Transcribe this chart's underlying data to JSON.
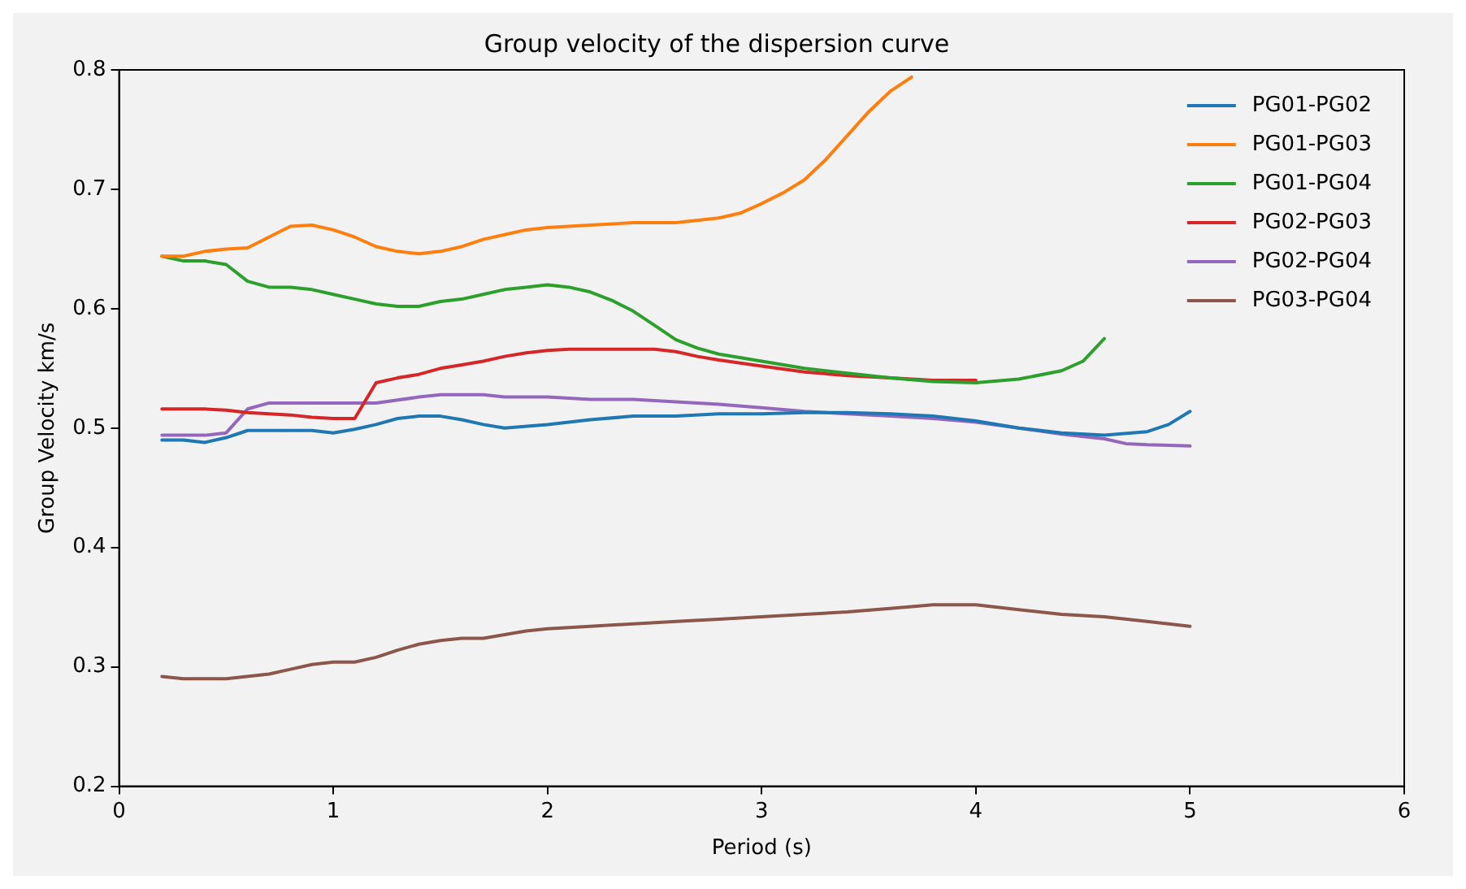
{
  "chart_data": {
    "type": "line",
    "title": "Group velocity of the dispersion curve",
    "xlabel": "Period (s)",
    "ylabel": "Group Velocity km/s",
    "xlim": [
      0,
      6
    ],
    "xticks": [
      0,
      1,
      2,
      3,
      4,
      5,
      6
    ],
    "ylim": [
      0.2,
      0.8
    ],
    "yticks": [
      0.2,
      0.3,
      0.4,
      0.5,
      0.6,
      0.7,
      0.8
    ],
    "grid": false,
    "legend": "top right",
    "marker": "none",
    "line_style": "solid",
    "series": [
      {
        "name": "PG01-PG02",
        "color": "#1f77b4",
        "x": [
          0.2,
          0.3,
          0.4,
          0.5,
          0.6,
          0.8,
          0.9,
          1.0,
          1.1,
          1.2,
          1.3,
          1.4,
          1.5,
          1.6,
          1.7,
          1.8,
          2.0,
          2.2,
          2.4,
          2.6,
          2.8,
          3.0,
          3.2,
          3.4,
          3.6,
          3.8,
          4.0,
          4.2,
          4.4,
          4.6,
          4.8,
          4.9,
          5.0
        ],
        "values": [
          0.49,
          0.49,
          0.488,
          0.492,
          0.498,
          0.498,
          0.498,
          0.496,
          0.499,
          0.503,
          0.508,
          0.51,
          0.51,
          0.507,
          0.503,
          0.5,
          0.503,
          0.507,
          0.51,
          0.51,
          0.512,
          0.512,
          0.513,
          0.513,
          0.512,
          0.51,
          0.506,
          0.5,
          0.496,
          0.494,
          0.497,
          0.503,
          0.514
        ]
      },
      {
        "name": "PG01-PG03",
        "color": "#ff7f0e",
        "x": [
          0.2,
          0.3,
          0.4,
          0.5,
          0.6,
          0.7,
          0.8,
          0.9,
          1.0,
          1.1,
          1.2,
          1.3,
          1.4,
          1.5,
          1.6,
          1.7,
          1.8,
          1.9,
          2.0,
          2.2,
          2.4,
          2.6,
          2.8,
          2.9,
          3.0,
          3.1,
          3.2,
          3.3,
          3.4,
          3.5,
          3.6,
          3.7
        ],
        "values": [
          0.644,
          0.644,
          0.648,
          0.65,
          0.651,
          0.66,
          0.669,
          0.67,
          0.666,
          0.66,
          0.652,
          0.648,
          0.646,
          0.648,
          0.652,
          0.658,
          0.662,
          0.666,
          0.668,
          0.67,
          0.672,
          0.672,
          0.676,
          0.68,
          0.688,
          0.697,
          0.708,
          0.725,
          0.745,
          0.765,
          0.782,
          0.794
        ]
      },
      {
        "name": "PG01-PG04",
        "color": "#2ca02c",
        "x": [
          0.2,
          0.3,
          0.4,
          0.5,
          0.6,
          0.7,
          0.8,
          0.9,
          1.0,
          1.1,
          1.2,
          1.3,
          1.4,
          1.5,
          1.6,
          1.7,
          1.8,
          1.9,
          2.0,
          2.1,
          2.2,
          2.3,
          2.4,
          2.5,
          2.6,
          2.7,
          2.8,
          3.0,
          3.2,
          3.4,
          3.6,
          3.8,
          4.0,
          4.2,
          4.4,
          4.5,
          4.6
        ],
        "values": [
          0.644,
          0.64,
          0.64,
          0.637,
          0.623,
          0.618,
          0.618,
          0.616,
          0.612,
          0.608,
          0.604,
          0.602,
          0.602,
          0.606,
          0.608,
          0.612,
          0.616,
          0.618,
          0.62,
          0.618,
          0.614,
          0.607,
          0.598,
          0.586,
          0.574,
          0.567,
          0.562,
          0.556,
          0.55,
          0.546,
          0.542,
          0.539,
          0.538,
          0.541,
          0.548,
          0.556,
          0.575
        ]
      },
      {
        "name": "PG02-PG03",
        "color": "#d62728",
        "x": [
          0.2,
          0.4,
          0.5,
          0.6,
          0.8,
          0.9,
          1.0,
          1.1,
          1.2,
          1.3,
          1.4,
          1.5,
          1.6,
          1.7,
          1.8,
          1.9,
          2.0,
          2.1,
          2.3,
          2.5,
          2.6,
          2.7,
          2.8,
          3.0,
          3.2,
          3.4,
          3.6,
          3.8,
          4.0
        ],
        "values": [
          0.516,
          0.516,
          0.515,
          0.513,
          0.511,
          0.509,
          0.508,
          0.508,
          0.538,
          0.542,
          0.545,
          0.55,
          0.553,
          0.556,
          0.56,
          0.563,
          0.565,
          0.566,
          0.566,
          0.566,
          0.564,
          0.56,
          0.557,
          0.552,
          0.547,
          0.544,
          0.542,
          0.54,
          0.54
        ]
      },
      {
        "name": "PG02-PG04",
        "color": "#9467bd",
        "x": [
          0.2,
          0.4,
          0.5,
          0.6,
          0.7,
          0.8,
          1.0,
          1.2,
          1.4,
          1.5,
          1.7,
          1.8,
          2.0,
          2.2,
          2.4,
          2.6,
          2.8,
          3.0,
          3.2,
          3.4,
          3.6,
          3.8,
          4.0,
          4.2,
          4.4,
          4.6,
          4.7,
          4.8,
          5.0
        ],
        "values": [
          0.494,
          0.494,
          0.496,
          0.516,
          0.521,
          0.521,
          0.521,
          0.521,
          0.526,
          0.528,
          0.528,
          0.526,
          0.526,
          0.524,
          0.524,
          0.522,
          0.52,
          0.517,
          0.514,
          0.512,
          0.51,
          0.508,
          0.505,
          0.5,
          0.495,
          0.491,
          0.487,
          0.486,
          0.485
        ]
      },
      {
        "name": "PG03-PG04",
        "color": "#8c564b",
        "x": [
          0.2,
          0.3,
          0.5,
          0.7,
          0.8,
          0.9,
          1.0,
          1.1,
          1.2,
          1.3,
          1.4,
          1.5,
          1.6,
          1.7,
          1.8,
          1.9,
          2.0,
          2.2,
          2.4,
          2.6,
          2.8,
          3.0,
          3.2,
          3.4,
          3.6,
          3.8,
          4.0,
          4.2,
          4.4,
          4.6,
          4.8,
          5.0
        ],
        "values": [
          0.292,
          0.29,
          0.29,
          0.294,
          0.298,
          0.302,
          0.304,
          0.304,
          0.308,
          0.314,
          0.319,
          0.322,
          0.324,
          0.324,
          0.327,
          0.33,
          0.332,
          0.334,
          0.336,
          0.338,
          0.34,
          0.342,
          0.344,
          0.346,
          0.349,
          0.352,
          0.352,
          0.348,
          0.344,
          0.342,
          0.338,
          0.334
        ]
      }
    ]
  }
}
